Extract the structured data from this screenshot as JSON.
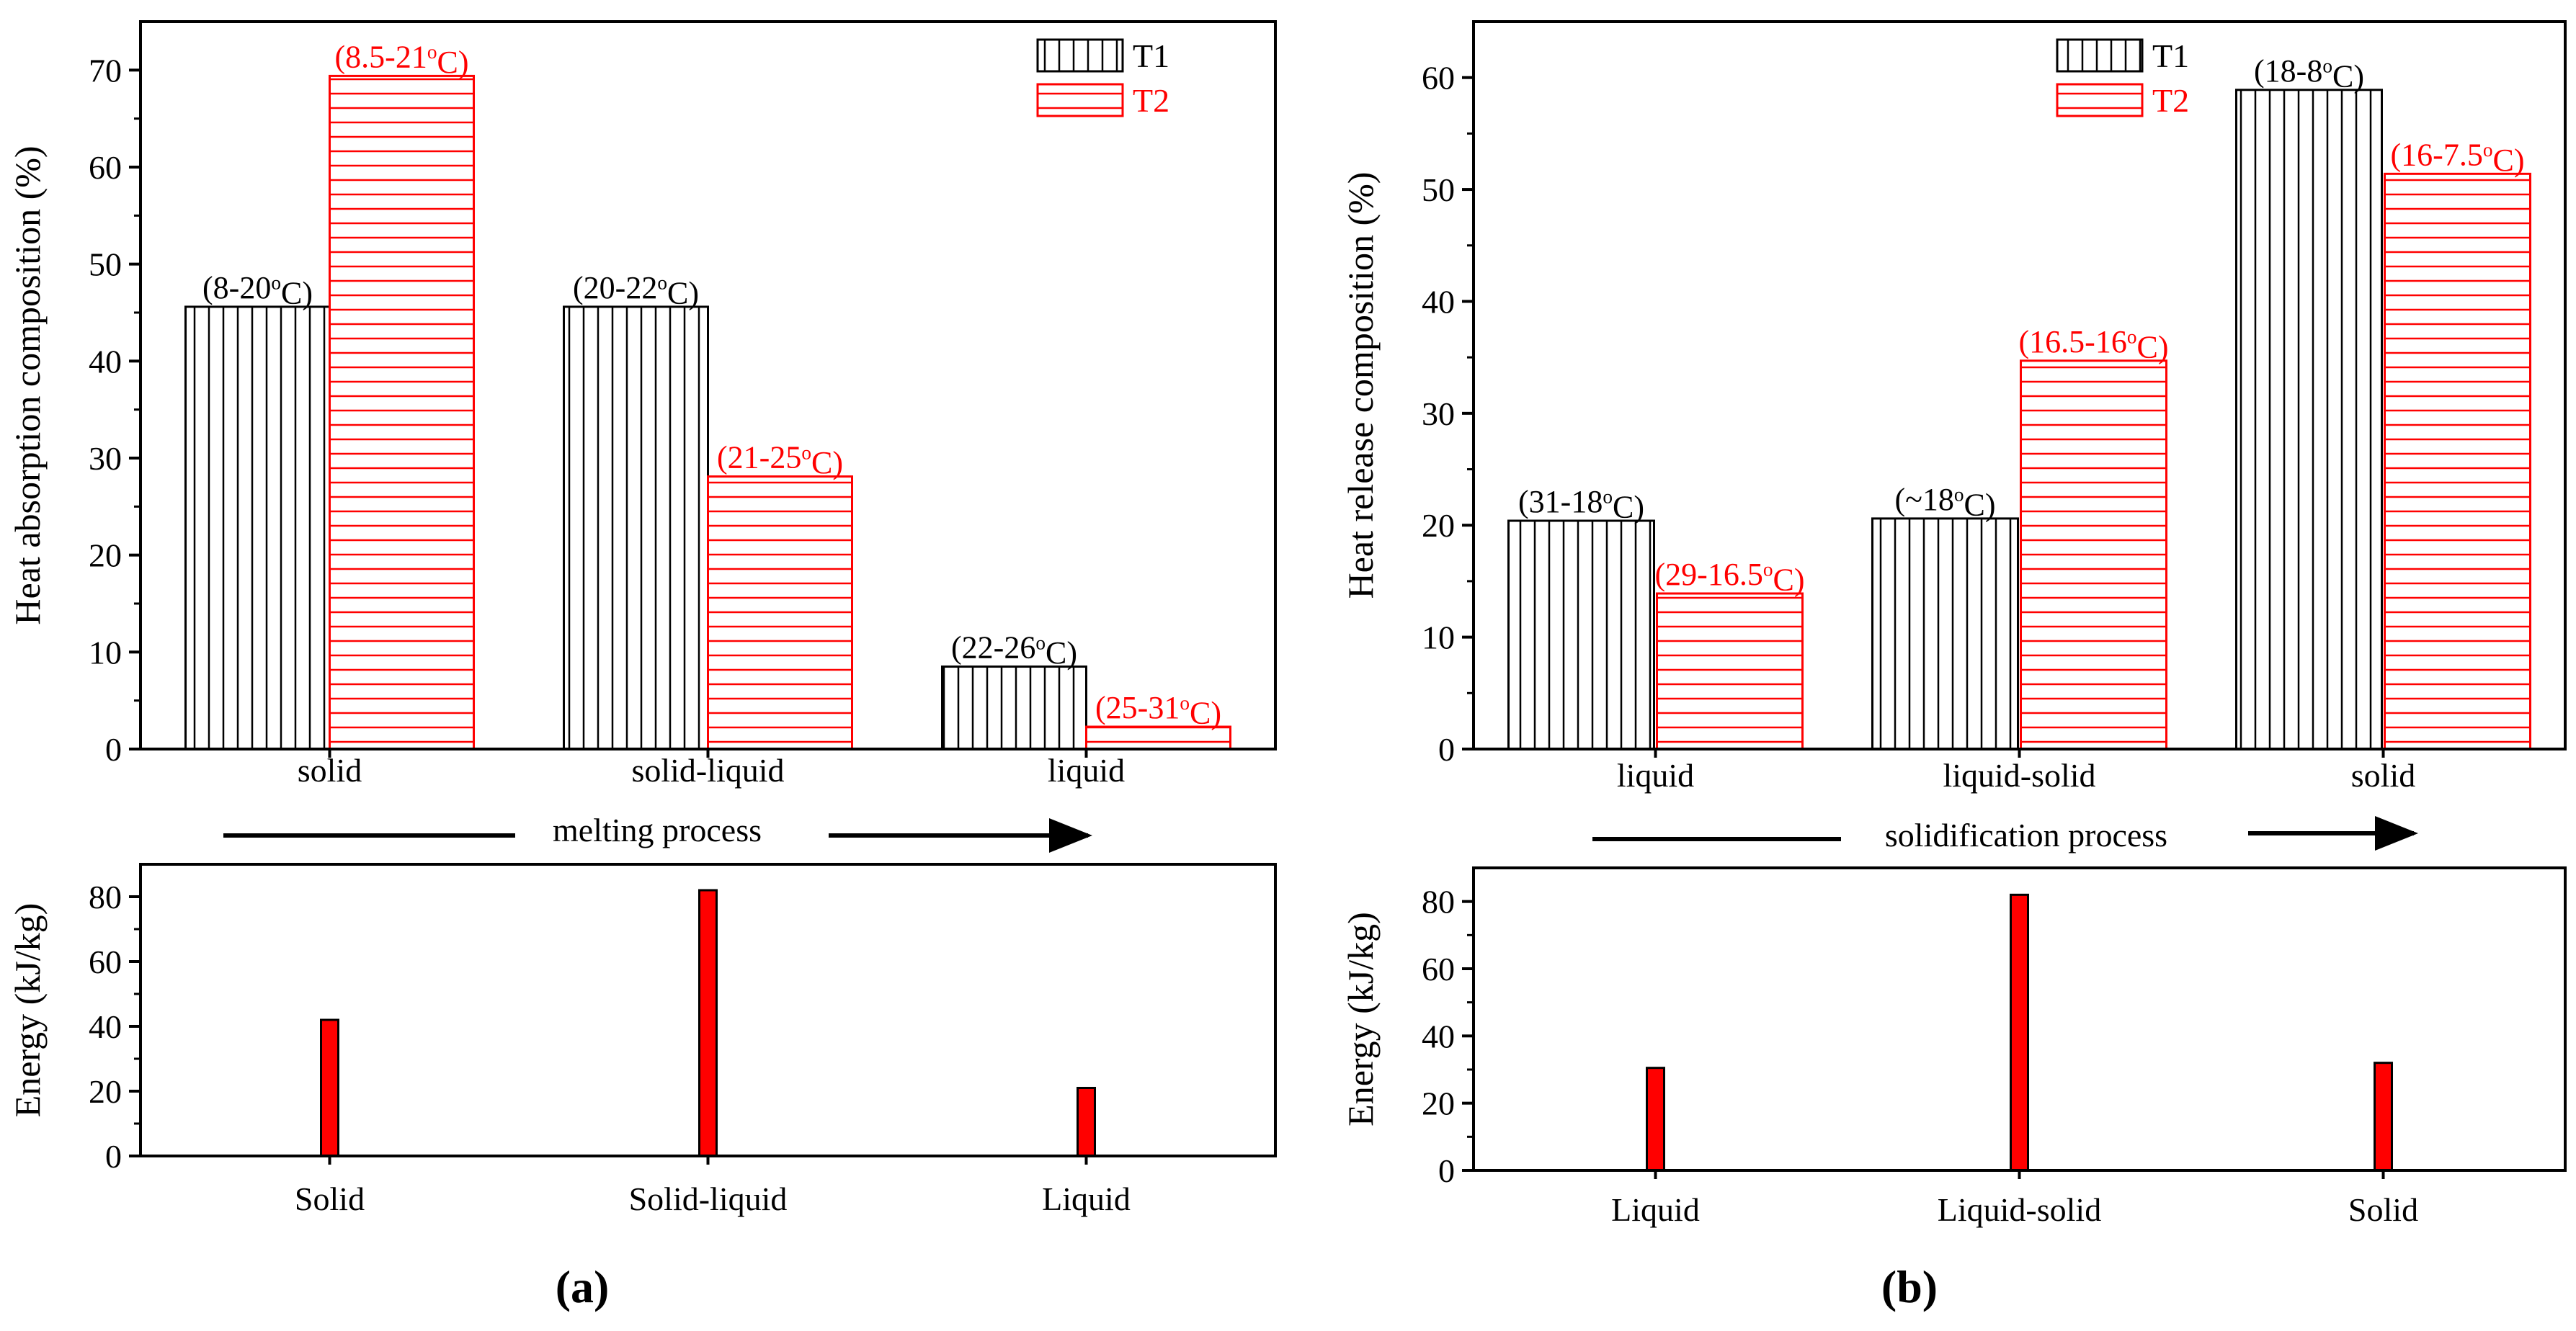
{
  "figure": {
    "panel_labels": [
      "(a)",
      "(b)"
    ]
  },
  "colors": {
    "t1": "#000000",
    "t2": "#ff0000",
    "energy_fill": "#ff0000",
    "energy_stroke": "#000000"
  },
  "chart_data": [
    {
      "id": "a-top",
      "type": "bar",
      "ylabel": "Heat absorption composition (%)",
      "xlabel": "melting process",
      "ylim": [
        0,
        75
      ],
      "yticks": [
        0,
        10,
        20,
        30,
        40,
        50,
        60,
        70
      ],
      "categories": [
        "solid",
        "solid-liquid",
        "liquid"
      ],
      "legend_position": "top-right",
      "series": [
        {
          "name": "T1",
          "pattern": "vertical-lines",
          "values": [
            45.6,
            45.6,
            8.5
          ],
          "labels": [
            "(8-20°C)",
            "(20-22°C)",
            "(22-26°C)"
          ]
        },
        {
          "name": "T2",
          "pattern": "horizontal-lines",
          "values": [
            69.4,
            28.1,
            2.3
          ],
          "labels": [
            "(8.5-21°C)",
            "(21-25°C)",
            "(25-31°C)"
          ]
        }
      ]
    },
    {
      "id": "a-bottom",
      "type": "bar",
      "ylabel": "Energy (kJ/kg)",
      "ylim": [
        0,
        90
      ],
      "yticks": [
        0,
        20,
        40,
        60,
        80
      ],
      "categories": [
        "Solid",
        "Solid-liquid",
        "Liquid"
      ],
      "values": [
        42,
        82,
        21
      ]
    },
    {
      "id": "b-top",
      "type": "bar",
      "ylabel": "Heat release composition (%)",
      "xlabel": "solidification process",
      "ylim": [
        0,
        65
      ],
      "yticks": [
        0,
        10,
        20,
        30,
        40,
        50,
        60
      ],
      "categories": [
        "liquid",
        "liquid-solid",
        "solid"
      ],
      "legend_position": "top-center",
      "series": [
        {
          "name": "T1",
          "pattern": "vertical-lines",
          "values": [
            20.4,
            20.6,
            58.9
          ],
          "labels": [
            "(31-18°C)",
            "(~18°C)",
            "(18-8°C)"
          ]
        },
        {
          "name": "T2",
          "pattern": "horizontal-lines",
          "values": [
            13.9,
            34.7,
            51.4
          ],
          "labels": [
            "(29-16.5°C)",
            "(16.5-16°C)",
            "(16-7.5°C)"
          ]
        }
      ]
    },
    {
      "id": "b-bottom",
      "type": "bar",
      "ylabel": "Energy (kJ/kg)",
      "ylim": [
        0,
        90
      ],
      "yticks": [
        0,
        20,
        40,
        60,
        80
      ],
      "categories": [
        "Liquid",
        "Liquid-solid",
        "Solid"
      ],
      "values": [
        30.5,
        82,
        32
      ]
    }
  ]
}
